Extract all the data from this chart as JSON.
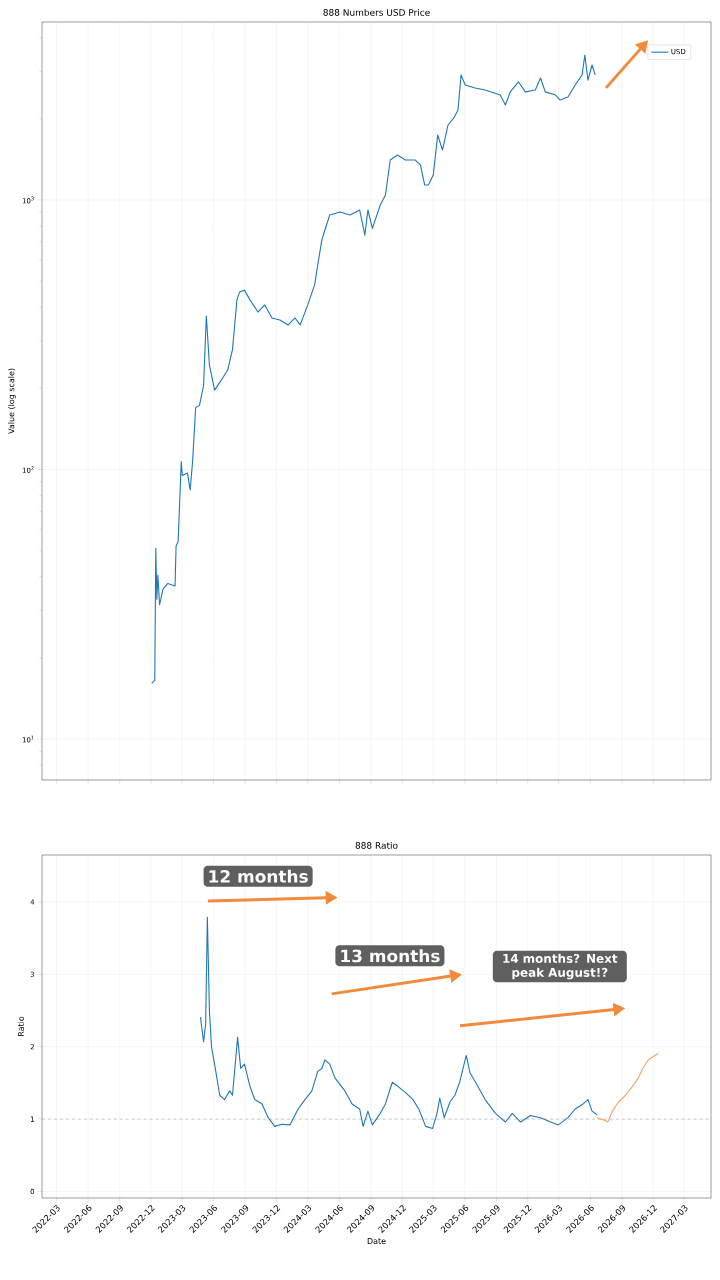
{
  "chart_data": [
    {
      "type": "line",
      "title": "888 Numbers USD Price",
      "ylabel": "Value (log scale)",
      "log": "y",
      "grid": true,
      "legend": "top right",
      "tick_labels": "y",
      "xlim": [
        "2022-01-18",
        "2027-05-18"
      ],
      "xticks": [
        "2022-03",
        "2022-06",
        "2022-09",
        "2022-12",
        "2023-03",
        "2023-06",
        "2023-09",
        "2023-12",
        "2024-03",
        "2024-06",
        "2024-09",
        "2024-12",
        "2025-03",
        "2025-06",
        "2025-09",
        "2025-12",
        "2026-03",
        "2026-06",
        "2026-09",
        "2026-12",
        "2027-03"
      ],
      "ylim": [
        7.05,
        4575
      ],
      "yticks": [
        {
          "value": 10,
          "label": "10$^{1}$"
        },
        {
          "value": 100,
          "label": "10$^{2}$"
        },
        {
          "value": 1000,
          "label": "10$^{3}$"
        }
      ],
      "series": [
        {
          "name": "USD",
          "color": "#1f77b4",
          "x": [
            "2022-12-03",
            "2022-12-12",
            "2022-12-15",
            "2022-12-18",
            "2022-12-21",
            "2022-12-26",
            "2023-01-05",
            "2023-01-19",
            "2023-02-09",
            "2023-02-12",
            "2023-02-18",
            "2023-02-27",
            "2023-03-02",
            "2023-03-17",
            "2023-03-25",
            "2023-04-01",
            "2023-04-10",
            "2023-04-21",
            "2023-05-03",
            "2023-05-11",
            "2023-05-20",
            "2023-06-04",
            "2023-06-24",
            "2023-07-12",
            "2023-07-26",
            "2023-08-08",
            "2023-08-16",
            "2023-08-30",
            "2023-09-15",
            "2023-10-08",
            "2023-10-28",
            "2023-11-18",
            "2023-12-11",
            "2024-01-04",
            "2024-01-24",
            "2024-02-08",
            "2024-03-01",
            "2024-03-21",
            "2024-03-30",
            "2024-04-11",
            "2024-04-20",
            "2024-05-04",
            "2024-06-03",
            "2024-07-02",
            "2024-07-30",
            "2024-08-14",
            "2024-08-23",
            "2024-09-05",
            "2024-09-28",
            "2024-10-13",
            "2024-10-27",
            "2024-11-17",
            "2024-12-10",
            "2025-01-08",
            "2025-01-23",
            "2025-02-04",
            "2025-02-15",
            "2025-03-01",
            "2025-03-14",
            "2025-03-28",
            "2025-04-13",
            "2025-04-30",
            "2025-05-12",
            "2025-05-21",
            "2025-06-02",
            "2025-07-01",
            "2025-07-30",
            "2025-09-12",
            "2025-09-27",
            "2025-10-11",
            "2025-11-04",
            "2025-11-24",
            "2025-12-23",
            "2026-01-07",
            "2026-01-21",
            "2026-02-20",
            "2026-03-05",
            "2026-03-28",
            "2026-04-18",
            "2026-05-08",
            "2026-05-16",
            "2026-05-25",
            "2026-06-06",
            "2026-06-15"
          ],
          "values": [
            16.1,
            16.5,
            51,
            33,
            40.6,
            31.5,
            36,
            37.8,
            37,
            52,
            54,
            107,
            95,
            97,
            84,
            107,
            170,
            173,
            205,
            371,
            244,
            197,
            215,
            234,
            278,
            426,
            456,
            463,
            426,
            384,
            408,
            365,
            359,
            344,
            365,
            344,
            408,
            484,
            574,
            710,
            774,
            880,
            903,
            880,
            918,
            741,
            918,
            785,
            958,
            1044,
            1407,
            1469,
            1407,
            1407,
            1348,
            1137,
            1137,
            1238,
            1742,
            1533,
            1898,
            2016,
            2157,
            2911,
            2671,
            2602,
            2560,
            2451,
            2250,
            2518,
            2741,
            2518,
            2560,
            2835,
            2518,
            2451,
            2348,
            2409,
            2671,
            2911,
            3451,
            2785,
            3168,
            2911
          ]
        }
      ]
    },
    {
      "type": "line",
      "title": "888 Ratio",
      "xlabel": "Date",
      "ylabel": "Ratio",
      "grid": true,
      "xlim": [
        "2022-01-18",
        "2027-05-18"
      ],
      "xticks": [
        "2022-03",
        "2022-06",
        "2022-09",
        "2022-12",
        "2023-03",
        "2023-06",
        "2023-09",
        "2023-12",
        "2024-03",
        "2024-06",
        "2024-09",
        "2024-12",
        "2025-03",
        "2025-06",
        "2025-09",
        "2025-12",
        "2026-03",
        "2026-06",
        "2026-09",
        "2026-12",
        "2027-03"
      ],
      "ylim": [
        -0.09,
        4.65
      ],
      "yticks": [
        0,
        1,
        2,
        3,
        4
      ],
      "ref_lines": [
        {
          "axis": "y",
          "value": 1,
          "color": "#808080",
          "line_style": "dashed"
        }
      ],
      "annotations": [
        "12 months",
        "13 months",
        "14 months? Next peak August!?"
      ],
      "series": [
        {
          "color": "#1f77b4",
          "x": [
            "2023-04-24",
            "2023-05-03",
            "2023-05-09",
            "2023-05-14",
            "2023-05-20",
            "2023-05-26",
            "2023-06-04",
            "2023-06-19",
            "2023-07-03",
            "2023-07-18",
            "2023-07-26",
            "2023-08-10",
            "2023-08-19",
            "2023-08-30",
            "2023-09-15",
            "2023-09-29",
            "2023-10-20",
            "2023-11-07",
            "2023-11-26",
            "2023-12-17",
            "2024-01-09",
            "2024-02-02",
            "2024-02-22",
            "2024-03-13",
            "2024-03-30",
            "2024-04-11",
            "2024-04-20",
            "2024-05-04",
            "2024-05-19",
            "2024-06-17",
            "2024-07-08",
            "2024-07-30",
            "2024-08-09",
            "2024-08-23",
            "2024-09-05",
            "2024-09-28",
            "2024-10-13",
            "2024-11-02",
            "2024-11-19",
            "2024-12-10",
            "2025-01-01",
            "2025-01-18",
            "2025-02-07",
            "2025-02-27",
            "2025-03-12",
            "2025-03-20",
            "2025-04-02",
            "2025-04-19",
            "2025-05-03",
            "2025-05-17",
            "2025-06-05",
            "2025-06-16",
            "2025-07-09",
            "2025-07-30",
            "2025-08-29",
            "2025-09-27",
            "2025-10-17",
            "2025-11-10",
            "2025-12-09",
            "2026-01-07",
            "2026-02-06",
            "2026-02-28",
            "2026-03-28",
            "2026-04-18",
            "2026-05-11",
            "2026-05-25",
            "2026-06-06",
            "2026-06-20"
          ],
          "values": [
            2.41,
            2.07,
            2.31,
            3.79,
            2.5,
            2.0,
            1.76,
            1.33,
            1.27,
            1.39,
            1.33,
            2.13,
            1.7,
            1.76,
            1.45,
            1.27,
            1.21,
            1.02,
            0.9,
            0.93,
            0.92,
            1.14,
            1.27,
            1.39,
            1.66,
            1.7,
            1.82,
            1.76,
            1.57,
            1.39,
            1.21,
            1.14,
            0.9,
            1.11,
            0.92,
            1.08,
            1.21,
            1.51,
            1.45,
            1.37,
            1.27,
            1.14,
            0.9,
            0.87,
            1.08,
            1.29,
            1.02,
            1.24,
            1.33,
            1.51,
            1.88,
            1.64,
            1.45,
            1.27,
            1.08,
            0.96,
            1.08,
            0.96,
            1.05,
            1.02,
            0.96,
            0.92,
            1.02,
            1.14,
            1.21,
            1.27,
            1.11,
            1.06
          ]
        },
        {
          "color": "#f2a35e",
          "x": [
            "2026-06-20",
            "2026-07-14",
            "2026-07-22",
            "2026-08-04",
            "2026-08-21",
            "2026-09-11",
            "2026-10-01",
            "2026-10-19",
            "2026-10-31",
            "2026-11-17",
            "2026-12-16"
          ],
          "values": [
            1.02,
            0.98,
            0.96,
            1.11,
            1.23,
            1.33,
            1.45,
            1.57,
            1.7,
            1.82,
            1.91
          ]
        }
      ]
    }
  ]
}
